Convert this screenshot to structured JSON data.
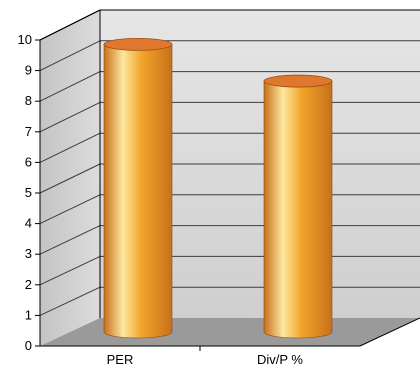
{
  "chart_data": {
    "type": "bar",
    "title": "",
    "xlabel": "",
    "ylabel": "",
    "categories": [
      "PER",
      "Div/P %"
    ],
    "values": [
      9.4,
      8.2
    ],
    "ylim": [
      0,
      10
    ],
    "yticks": [
      "0",
      "1",
      "2",
      "3",
      "4",
      "5",
      "6",
      "7",
      "8",
      "9",
      "10"
    ],
    "grid": true,
    "legend": "none",
    "style": "3d-cylinder",
    "colors": {
      "bar_light": "#fde7a0",
      "bar_mid": "#f2a52a",
      "bar_dark": "#c8701a",
      "bar_top": "#e0772f",
      "wall": "#d0d0d0",
      "floor": "#9a9a9a",
      "grid": "#3c3c3c"
    }
  }
}
